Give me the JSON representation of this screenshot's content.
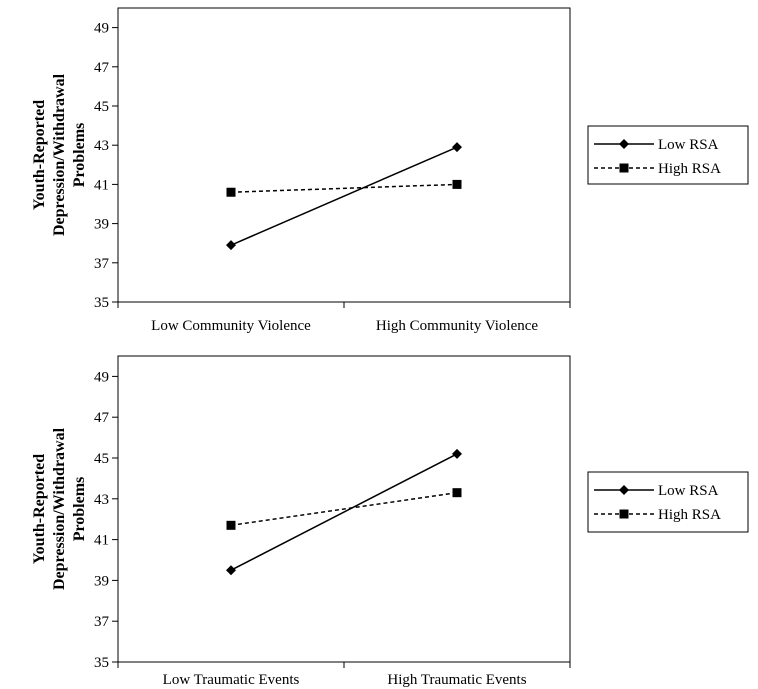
{
  "chart_data": [
    {
      "type": "line",
      "title": "",
      "xlabel": "",
      "ylabel": [
        "Youth-Reported",
        "Depression/Withdrawal",
        "Problems"
      ],
      "categories": [
        "Low Community Violence",
        "High Community Violence"
      ],
      "ylim": [
        35,
        50
      ],
      "yticks": [
        35,
        37,
        39,
        41,
        43,
        45,
        47,
        49
      ],
      "grid": false,
      "legend_position": "right",
      "series": [
        {
          "name": "Low RSA",
          "values": [
            37.9,
            42.9
          ],
          "marker": "diamond",
          "style": "solid",
          "color": "#000000"
        },
        {
          "name": "High RSA",
          "values": [
            40.6,
            41.0
          ],
          "marker": "square",
          "style": "dashed",
          "color": "#000000"
        }
      ]
    },
    {
      "type": "line",
      "title": "",
      "xlabel": "",
      "ylabel": [
        "Youth-Reported",
        "Depression/Withdrawal",
        "Problems"
      ],
      "categories": [
        "Low Traumatic Events",
        "High Traumatic Events"
      ],
      "ylim": [
        35,
        50
      ],
      "yticks": [
        35,
        37,
        39,
        41,
        43,
        45,
        47,
        49
      ],
      "grid": false,
      "legend_position": "right",
      "series": [
        {
          "name": "Low RSA",
          "values": [
            39.5,
            45.2
          ],
          "marker": "diamond",
          "style": "solid",
          "color": "#000000"
        },
        {
          "name": "High RSA",
          "values": [
            41.7,
            43.3
          ],
          "marker": "square",
          "style": "dashed",
          "color": "#000000"
        }
      ]
    }
  ]
}
